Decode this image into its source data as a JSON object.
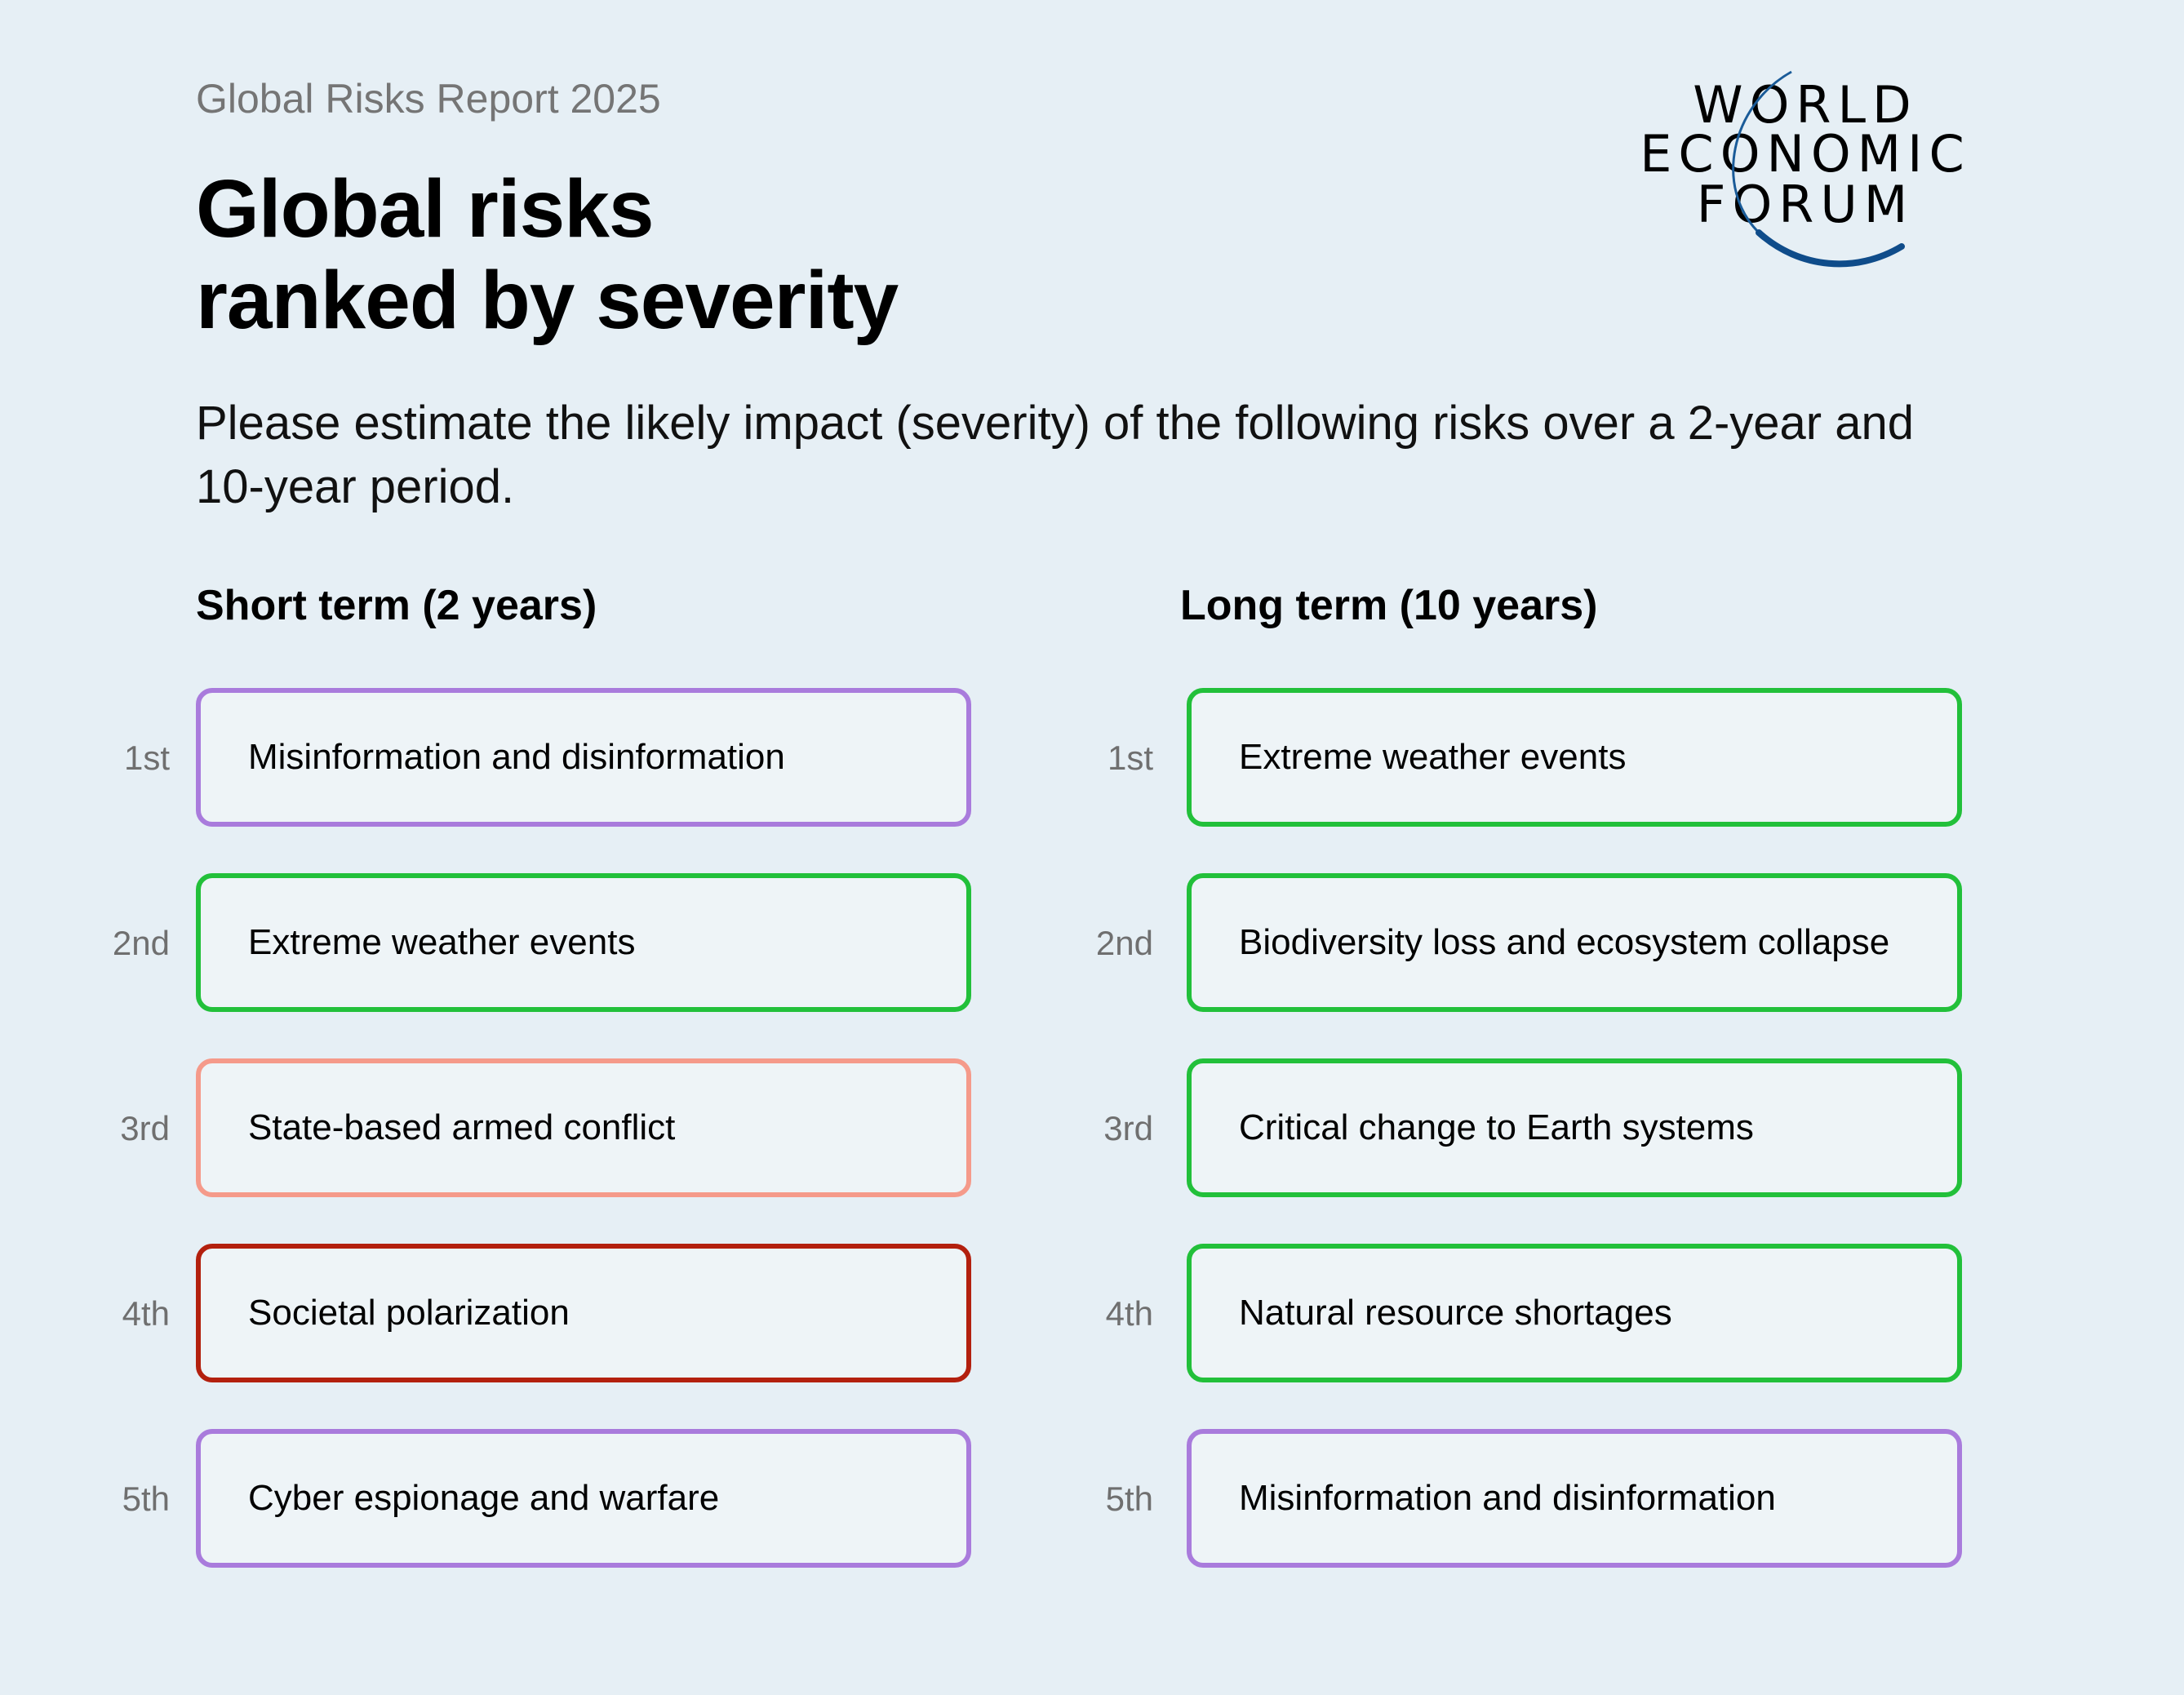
{
  "header": {
    "report": "Global Risks Report 2025",
    "title_line1": "Global risks",
    "title_line2": "ranked by severity",
    "subtitle": "Please estimate the likely impact (severity) of the following risks over a 2-year and 10-year period."
  },
  "logo": {
    "line1": "WORLD",
    "line2": "ECONOMIC",
    "line3": "FORUM",
    "arc_color": "#1a5b98"
  },
  "colors": {
    "purple": "#a97bdc",
    "green": "#22c03a",
    "salmon": "#f59a8a",
    "darkred": "#b3200e"
  },
  "short_term": {
    "heading": "Short term (2 years)",
    "items": [
      {
        "rank": "1st",
        "label": "Misinformation and disinformation",
        "color": "#a97bdc"
      },
      {
        "rank": "2nd",
        "label": "Extreme weather events",
        "color": "#22c03a"
      },
      {
        "rank": "3rd",
        "label": "State-based armed conflict",
        "color": "#f59a8a"
      },
      {
        "rank": "4th",
        "label": "Societal polarization",
        "color": "#b3200e"
      },
      {
        "rank": "5th",
        "label": "Cyber espionage and warfare",
        "color": "#a97bdc"
      }
    ]
  },
  "long_term": {
    "heading": "Long term (10 years)",
    "items": [
      {
        "rank": "1st",
        "label": "Extreme weather events",
        "color": "#22c03a"
      },
      {
        "rank": "2nd",
        "label": "Biodiversity loss and ecosystem collapse",
        "color": "#22c03a"
      },
      {
        "rank": "3rd",
        "label": "Critical change to Earth systems",
        "color": "#22c03a"
      },
      {
        "rank": "4th",
        "label": "Natural resource shortages",
        "color": "#22c03a"
      },
      {
        "rank": "5th",
        "label": "Misinformation and disinformation",
        "color": "#a97bdc"
      }
    ]
  }
}
